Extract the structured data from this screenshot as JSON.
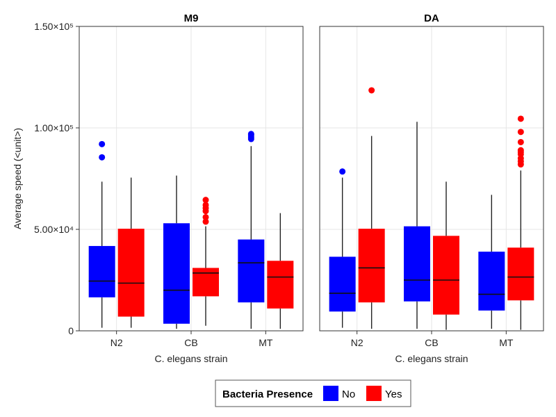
{
  "chart_data": {
    "type": "boxplot",
    "ylabel": "Average speed (<unit>)",
    "xlabel": "C. elegans strain",
    "ylim": [
      0,
      150000
    ],
    "yticks": [
      {
        "value": 0,
        "label": "0"
      },
      {
        "value": 50000,
        "label": "5.00×10⁴"
      },
      {
        "value": 100000,
        "label": "1.00×10⁵"
      },
      {
        "value": 150000,
        "label": "1.50×10⁵"
      }
    ],
    "categories": [
      "N2",
      "CB",
      "MT"
    ],
    "grid": true,
    "legend": {
      "title": "Bacteria Presence",
      "placement": "bottom",
      "entries": [
        {
          "name": "No",
          "color": "#0000ff"
        },
        {
          "name": "Yes",
          "color": "#ff0000"
        }
      ]
    },
    "facets": [
      {
        "title": "M9",
        "boxes": [
          {
            "category": "N2",
            "group": "No",
            "whisker_low": 1500,
            "q1": 16500,
            "median": 24500,
            "q3": 41800,
            "whisker_high": 73500,
            "outliers": [
              85500,
              92000
            ]
          },
          {
            "category": "N2",
            "group": "Yes",
            "whisker_low": 1500,
            "q1": 7000,
            "median": 23500,
            "q3": 50300,
            "whisker_high": 75500,
            "outliers": []
          },
          {
            "category": "CB",
            "group": "No",
            "whisker_low": 1000,
            "q1": 3500,
            "median": 20000,
            "q3": 53000,
            "whisker_high": 76500,
            "outliers": []
          },
          {
            "category": "CB",
            "group": "Yes",
            "whisker_low": 2500,
            "q1": 17000,
            "median": 28500,
            "q3": 31000,
            "whisker_high": 51500,
            "outliers": [
              53800,
              56000,
              59000,
              60500,
              62000,
              64500
            ]
          },
          {
            "category": "MT",
            "group": "No",
            "whisker_low": 1000,
            "q1": 14000,
            "median": 33500,
            "q3": 45000,
            "whisker_high": 91000,
            "outliers": [
              94500,
              95500,
              96500,
              97000
            ]
          },
          {
            "category": "MT",
            "group": "Yes",
            "whisker_low": 1000,
            "q1": 11000,
            "median": 26500,
            "q3": 34500,
            "whisker_high": 58000,
            "outliers": []
          }
        ]
      },
      {
        "title": "DA",
        "boxes": [
          {
            "category": "N2",
            "group": "No",
            "whisker_low": 1500,
            "q1": 9500,
            "median": 18500,
            "q3": 36500,
            "whisker_high": 75500,
            "outliers": [
              78500
            ]
          },
          {
            "category": "N2",
            "group": "Yes",
            "whisker_low": 1000,
            "q1": 14000,
            "median": 31000,
            "q3": 50300,
            "whisker_high": 96000,
            "outliers": [
              118500
            ]
          },
          {
            "category": "CB",
            "group": "No",
            "whisker_low": 1000,
            "q1": 14500,
            "median": 25000,
            "q3": 51500,
            "whisker_high": 103000,
            "outliers": []
          },
          {
            "category": "CB",
            "group": "Yes",
            "whisker_low": 500,
            "q1": 8000,
            "median": 25000,
            "q3": 46800,
            "whisker_high": 73500,
            "outliers": []
          },
          {
            "category": "MT",
            "group": "No",
            "whisker_low": 1000,
            "q1": 10000,
            "median": 18000,
            "q3": 39000,
            "whisker_high": 67000,
            "outliers": []
          },
          {
            "category": "MT",
            "group": "Yes",
            "whisker_low": 500,
            "q1": 15000,
            "median": 26500,
            "q3": 41000,
            "whisker_high": 79000,
            "outliers": [
              82000,
              83500,
              85000,
              87000,
              88000,
              89000,
              93000,
              98000,
              104500
            ]
          }
        ]
      }
    ]
  }
}
